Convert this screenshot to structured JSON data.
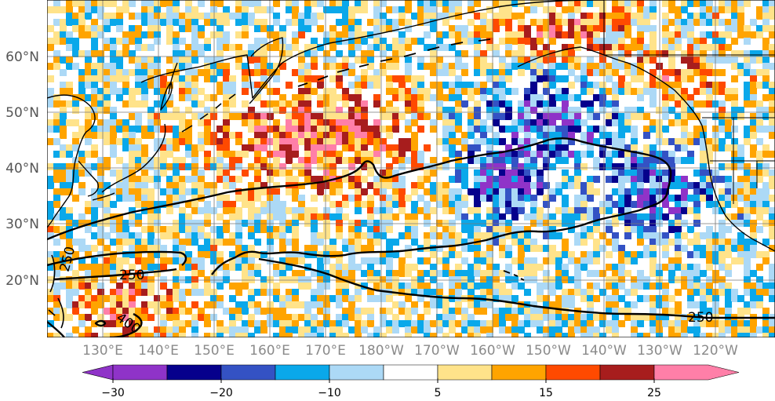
{
  "map": {
    "latitude_labels": [
      "60°N",
      "50°N",
      "40°N",
      "30°N",
      "20°N"
    ],
    "longitude_labels": [
      "130°E",
      "140°E",
      "150°E",
      "160°E",
      "170°E",
      "180°W",
      "170°W",
      "160°W",
      "150°W",
      "140°W",
      "130°W",
      "120°W"
    ],
    "contour_labels": [
      "250",
      "250",
      "400",
      "250"
    ]
  },
  "colorbar": {
    "tick_labels": [
      "−30",
      "−20",
      "−10",
      "5",
      "15",
      "25"
    ],
    "colors": [
      "#8f33c8",
      "#06008c",
      "#3452c4",
      "#0aa8ea",
      "#acd9f6",
      "#ffffff",
      "#ffe38a",
      "#ffa400",
      "#ff4a00",
      "#a71d1d",
      "#ff7fa8"
    ]
  }
}
